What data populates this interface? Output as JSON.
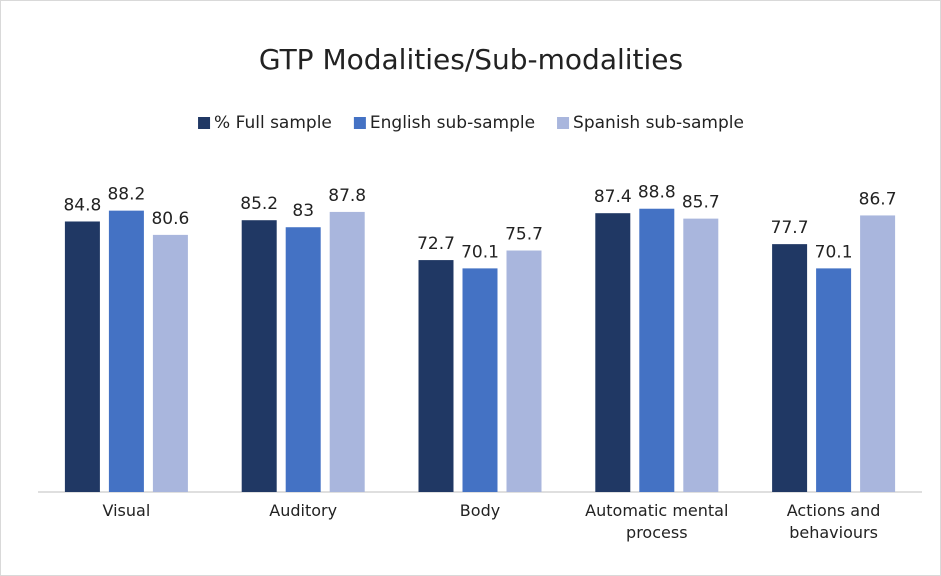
{
  "chart_data": {
    "type": "bar",
    "title": "GTP Modalities/Sub-modalities",
    "categories": [
      "Visual",
      "Auditory",
      "Body",
      "Automatic mental process",
      "Actions and behaviours"
    ],
    "series": [
      {
        "name": "% Full sample",
        "color": "#203864",
        "values": [
          84.8,
          85.2,
          72.7,
          87.4,
          77.7
        ]
      },
      {
        "name": "English sub-sample",
        "color": "#4472c4",
        "values": [
          88.2,
          83,
          70.1,
          88.8,
          70.1
        ]
      },
      {
        "name": "Spanish sub-sample",
        "color": "#a9b6dd",
        "values": [
          80.6,
          87.8,
          75.7,
          85.7,
          86.7
        ]
      }
    ],
    "ylim": [
      0,
      100
    ],
    "grid": false,
    "legend": "top"
  }
}
